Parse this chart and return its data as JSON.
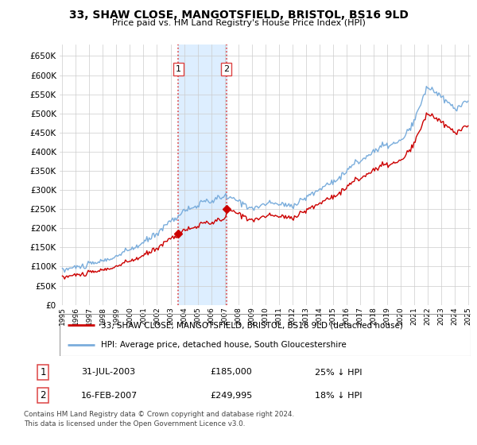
{
  "title": "33, SHAW CLOSE, MANGOTSFIELD, BRISTOL, BS16 9LD",
  "subtitle": "Price paid vs. HM Land Registry's House Price Index (HPI)",
  "legend_line1": "33, SHAW CLOSE, MANGOTSFIELD, BRISTOL, BS16 9LD (detached house)",
  "legend_line2": "HPI: Average price, detached house, South Gloucestershire",
  "transaction1_date": "31-JUL-2003",
  "transaction1_price": "£185,000",
  "transaction1_hpi": "25% ↓ HPI",
  "transaction2_date": "16-FEB-2007",
  "transaction2_price": "£249,995",
  "transaction2_hpi": "18% ↓ HPI",
  "footer": "Contains HM Land Registry data © Crown copyright and database right 2024.\nThis data is licensed under the Open Government Licence v3.0.",
  "hpi_color": "#7aaddc",
  "price_color": "#cc0000",
  "vline_color": "#dd4444",
  "vshade_color": "#ddeeff",
  "marker_color": "#cc0000",
  "ylim_min": 0,
  "ylim_max": 680000,
  "xlim_min": 1994.8,
  "xlim_max": 2025.2,
  "transaction1_x": 2003.58,
  "transaction2_x": 2007.12,
  "transaction1_y": 185000,
  "transaction2_y": 249995,
  "yticks": [
    0,
    50000,
    100000,
    150000,
    200000,
    250000,
    300000,
    350000,
    400000,
    450000,
    500000,
    550000,
    600000,
    650000
  ],
  "xtick_years": [
    1995,
    1996,
    1997,
    1998,
    1999,
    2000,
    2001,
    2002,
    2003,
    2004,
    2005,
    2006,
    2007,
    2008,
    2009,
    2010,
    2011,
    2012,
    2013,
    2014,
    2015,
    2016,
    2017,
    2018,
    2019,
    2020,
    2021,
    2022,
    2023,
    2024,
    2025
  ]
}
